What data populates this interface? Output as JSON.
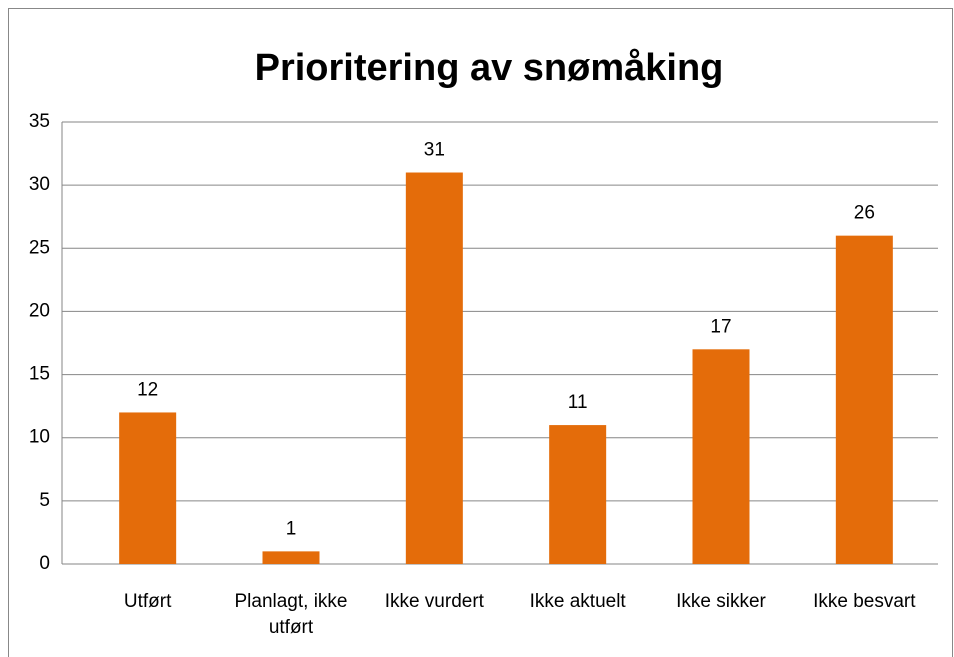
{
  "chart_data": {
    "type": "bar",
    "title": "Prioritering av snømåking",
    "categories": [
      "Utført",
      "Planlagt, ikke utført",
      "Ikke vurdert",
      "Ikke aktuelt",
      "Ikke sikker",
      "Ikke besvart"
    ],
    "values": [
      12,
      1,
      31,
      11,
      17,
      26
    ],
    "color": "#e46c0a",
    "ylim": [
      0,
      35
    ],
    "yticks": [
      0,
      5,
      10,
      15,
      20,
      25,
      30,
      35
    ],
    "grid": true
  }
}
